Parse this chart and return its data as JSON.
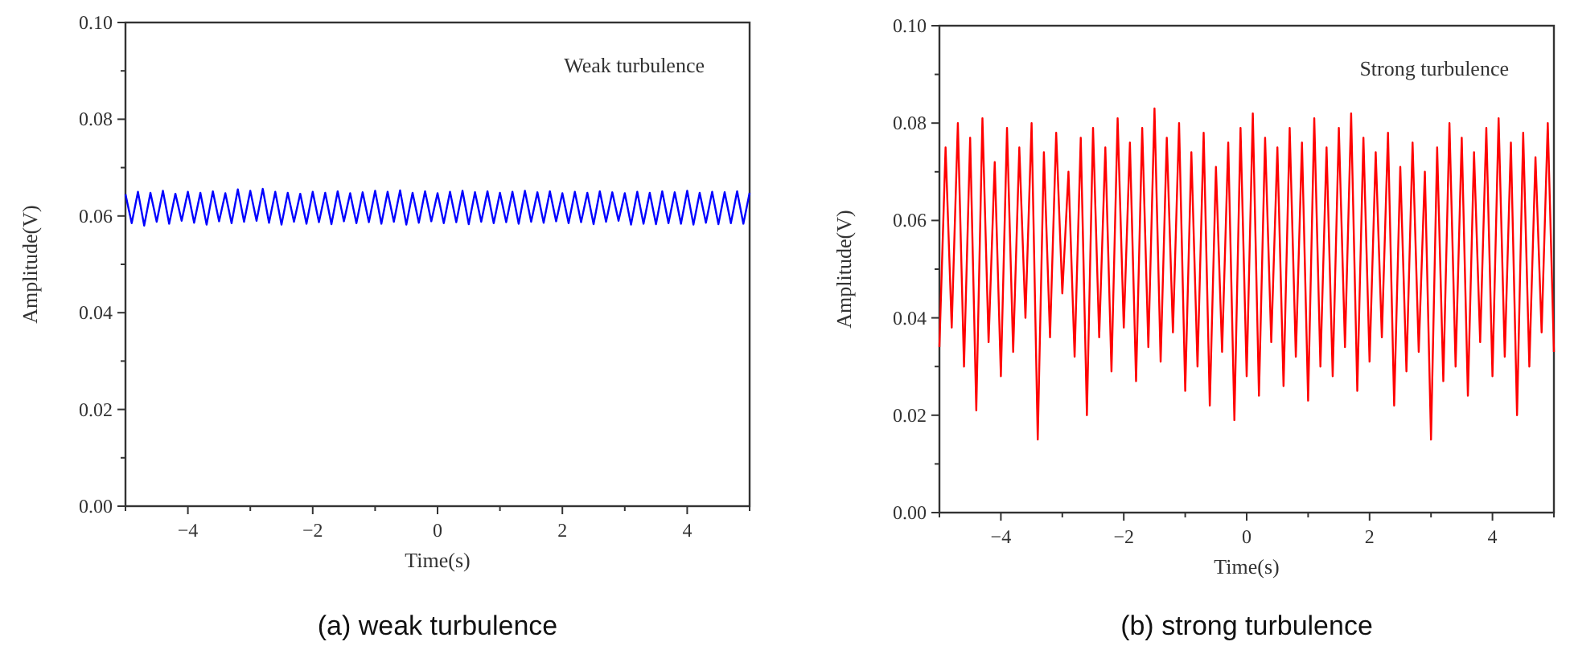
{
  "chart_data": [
    {
      "type": "line",
      "xlabel": "Time(s)",
      "ylabel": "Amplitude(V)",
      "annotations": [
        "Weak turbulence",
        "(a) weak turbulence"
      ],
      "xlim": [
        -5,
        5
      ],
      "ylim": [
        0,
        0.1
      ],
      "xticks": [
        {
          "value": -5,
          "label": null
        },
        -4,
        {
          "value": -3,
          "label": null
        },
        -2,
        {
          "value": -1,
          "label": null
        },
        0,
        {
          "value": 1,
          "label": null
        },
        2,
        {
          "value": 3,
          "label": null
        },
        4,
        {
          "value": 5,
          "label": null
        }
      ],
      "yticks": [
        {
          "value": 0,
          "label": "0.00"
        },
        {
          "value": 0.01,
          "label": null
        },
        0.02,
        {
          "value": 0.03,
          "label": null
        },
        0.04,
        {
          "value": 0.05,
          "label": null
        },
        0.06,
        {
          "value": 0.07,
          "label": null
        },
        0.08,
        {
          "value": 0.09,
          "label": null
        },
        {
          "value": 0.1,
          "label": "0.10"
        }
      ],
      "grid": false,
      "marker": "none",
      "line_style": "solid",
      "x": [
        -5,
        -4.9,
        -4.8,
        -4.7,
        -4.6,
        -4.5,
        -4.4,
        -4.3,
        -4.2,
        -4.1,
        -4,
        -3.9,
        -3.8,
        -3.7,
        -3.6,
        -3.5,
        -3.4,
        -3.3,
        -3.2,
        -3.1,
        -3,
        -2.9,
        -2.8,
        -2.7,
        -2.6,
        -2.5,
        -2.4,
        -2.3,
        -2.2,
        -2.1,
        -2,
        -1.9,
        -1.8,
        -1.7,
        -1.6,
        -1.5,
        -1.4,
        -1.3,
        -1.2,
        -1.1,
        -1,
        -0.9,
        -0.8,
        -0.7,
        -0.6,
        -0.5,
        -0.4,
        -0.3,
        -0.2,
        -0.1,
        0,
        0.1,
        0.2,
        0.3,
        0.4,
        0.5,
        0.6,
        0.7,
        0.8,
        0.9,
        1,
        1.1,
        1.2,
        1.3,
        1.4,
        1.5,
        1.6,
        1.7,
        1.8,
        1.9,
        2,
        2.1,
        2.2,
        2.3,
        2.4,
        2.5,
        2.6,
        2.7,
        2.8,
        2.9,
        3,
        3.1,
        3.2,
        3.3,
        3.4,
        3.5,
        3.6,
        3.7,
        3.8,
        3.9,
        4,
        4.1,
        4.2,
        4.3,
        4.4,
        4.5,
        4.6,
        4.7,
        4.8,
        4.9,
        5
      ],
      "series": [
        {
          "color": "#0000ff",
          "values": [
            0.0645,
            0.0585,
            0.065,
            0.058,
            0.0648,
            0.0588,
            0.0652,
            0.0584,
            0.0646,
            0.059,
            0.065,
            0.0586,
            0.0648,
            0.0582,
            0.0651,
            0.0589,
            0.0647,
            0.0585,
            0.0655,
            0.0588,
            0.0652,
            0.059,
            0.0656,
            0.0586,
            0.065,
            0.0582,
            0.0648,
            0.0588,
            0.0646,
            0.0584,
            0.065,
            0.0587,
            0.0648,
            0.0583,
            0.0651,
            0.0589,
            0.0647,
            0.0585,
            0.0649,
            0.0587,
            0.0652,
            0.0584,
            0.065,
            0.0588,
            0.0653,
            0.0582,
            0.0648,
            0.0586,
            0.0651,
            0.0589,
            0.0647,
            0.0585,
            0.065,
            0.0587,
            0.0652,
            0.0583,
            0.0649,
            0.0588,
            0.0651,
            0.0585,
            0.0648,
            0.0587,
            0.065,
            0.0584,
            0.0652,
            0.0588,
            0.0649,
            0.0586,
            0.0651,
            0.0589,
            0.0647,
            0.0585,
            0.065,
            0.0587,
            0.0648,
            0.0583,
            0.0651,
            0.0588,
            0.0649,
            0.059,
            0.0647,
            0.0582,
            0.065,
            0.0584,
            0.0648,
            0.0583,
            0.0651,
            0.0585,
            0.0649,
            0.0584,
            0.0652,
            0.0582,
            0.0648,
            0.0586,
            0.065,
            0.0583,
            0.0649,
            0.0585,
            0.0651,
            0.0584,
            0.0648
          ]
        }
      ]
    },
    {
      "type": "line",
      "xlabel": "Time(s)",
      "ylabel": "Amplitude(V)",
      "annotations": [
        "Strong turbulence",
        "(b) strong turbulence"
      ],
      "xlim": [
        -5,
        5
      ],
      "ylim": [
        0,
        0.1
      ],
      "xticks": [
        {
          "value": -5,
          "label": null
        },
        -4,
        {
          "value": -3,
          "label": null
        },
        -2,
        {
          "value": -1,
          "label": null
        },
        0,
        {
          "value": 1,
          "label": null
        },
        2,
        {
          "value": 3,
          "label": null
        },
        4,
        {
          "value": 5,
          "label": null
        }
      ],
      "yticks": [
        {
          "value": 0,
          "label": "0.00"
        },
        {
          "value": 0.01,
          "label": null
        },
        0.02,
        {
          "value": 0.03,
          "label": null
        },
        0.04,
        {
          "value": 0.05,
          "label": null
        },
        0.06,
        {
          "value": 0.07,
          "label": null
        },
        0.08,
        {
          "value": 0.09,
          "label": null
        },
        {
          "value": 0.1,
          "label": "0.10"
        }
      ],
      "grid": false,
      "marker": "none",
      "line_style": "solid",
      "x": [
        -5,
        -4.9,
        -4.8,
        -4.7,
        -4.6,
        -4.5,
        -4.4,
        -4.3,
        -4.2,
        -4.1,
        -4,
        -3.9,
        -3.8,
        -3.7,
        -3.6,
        -3.5,
        -3.4,
        -3.3,
        -3.2,
        -3.1,
        -3,
        -2.9,
        -2.8,
        -2.7,
        -2.6,
        -2.5,
        -2.4,
        -2.3,
        -2.2,
        -2.1,
        -2,
        -1.9,
        -1.8,
        -1.7,
        -1.6,
        -1.5,
        -1.4,
        -1.3,
        -1.2,
        -1.1,
        -1,
        -0.9,
        -0.8,
        -0.7,
        -0.6,
        -0.5,
        -0.4,
        -0.3,
        -0.2,
        -0.1,
        0,
        0.1,
        0.2,
        0.3,
        0.4,
        0.5,
        0.6,
        0.7,
        0.8,
        0.9,
        1,
        1.1,
        1.2,
        1.3,
        1.4,
        1.5,
        1.6,
        1.7,
        1.8,
        1.9,
        2,
        2.1,
        2.2,
        2.3,
        2.4,
        2.5,
        2.6,
        2.7,
        2.8,
        2.9,
        3,
        3.1,
        3.2,
        3.3,
        3.4,
        3.5,
        3.6,
        3.7,
        3.8,
        3.9,
        4,
        4.1,
        4.2,
        4.3,
        4.4,
        4.5,
        4.6,
        4.7,
        4.8,
        4.9,
        5
      ],
      "series": [
        {
          "color": "#ff0000",
          "values": [
            0.034,
            0.075,
            0.038,
            0.08,
            0.03,
            0.077,
            0.021,
            0.081,
            0.035,
            0.072,
            0.028,
            0.079,
            0.033,
            0.075,
            0.04,
            0.08,
            0.015,
            0.074,
            0.036,
            0.078,
            0.045,
            0.07,
            0.032,
            0.077,
            0.02,
            0.079,
            0.036,
            0.075,
            0.029,
            0.081,
            0.038,
            0.076,
            0.027,
            0.079,
            0.034,
            0.083,
            0.031,
            0.077,
            0.037,
            0.08,
            0.025,
            0.074,
            0.03,
            0.078,
            0.022,
            0.071,
            0.033,
            0.076,
            0.019,
            0.079,
            0.028,
            0.082,
            0.024,
            0.077,
            0.035,
            0.075,
            0.026,
            0.079,
            0.032,
            0.076,
            0.023,
            0.081,
            0.03,
            0.075,
            0.028,
            0.079,
            0.034,
            0.082,
            0.025,
            0.077,
            0.031,
            0.074,
            0.036,
            0.078,
            0.022,
            0.071,
            0.029,
            0.076,
            0.033,
            0.07,
            0.015,
            0.075,
            0.027,
            0.08,
            0.03,
            0.077,
            0.024,
            0.074,
            0.035,
            0.079,
            0.028,
            0.081,
            0.032,
            0.076,
            0.02,
            0.078,
            0.03,
            0.073,
            0.037,
            0.08,
            0.033
          ]
        }
      ]
    }
  ]
}
